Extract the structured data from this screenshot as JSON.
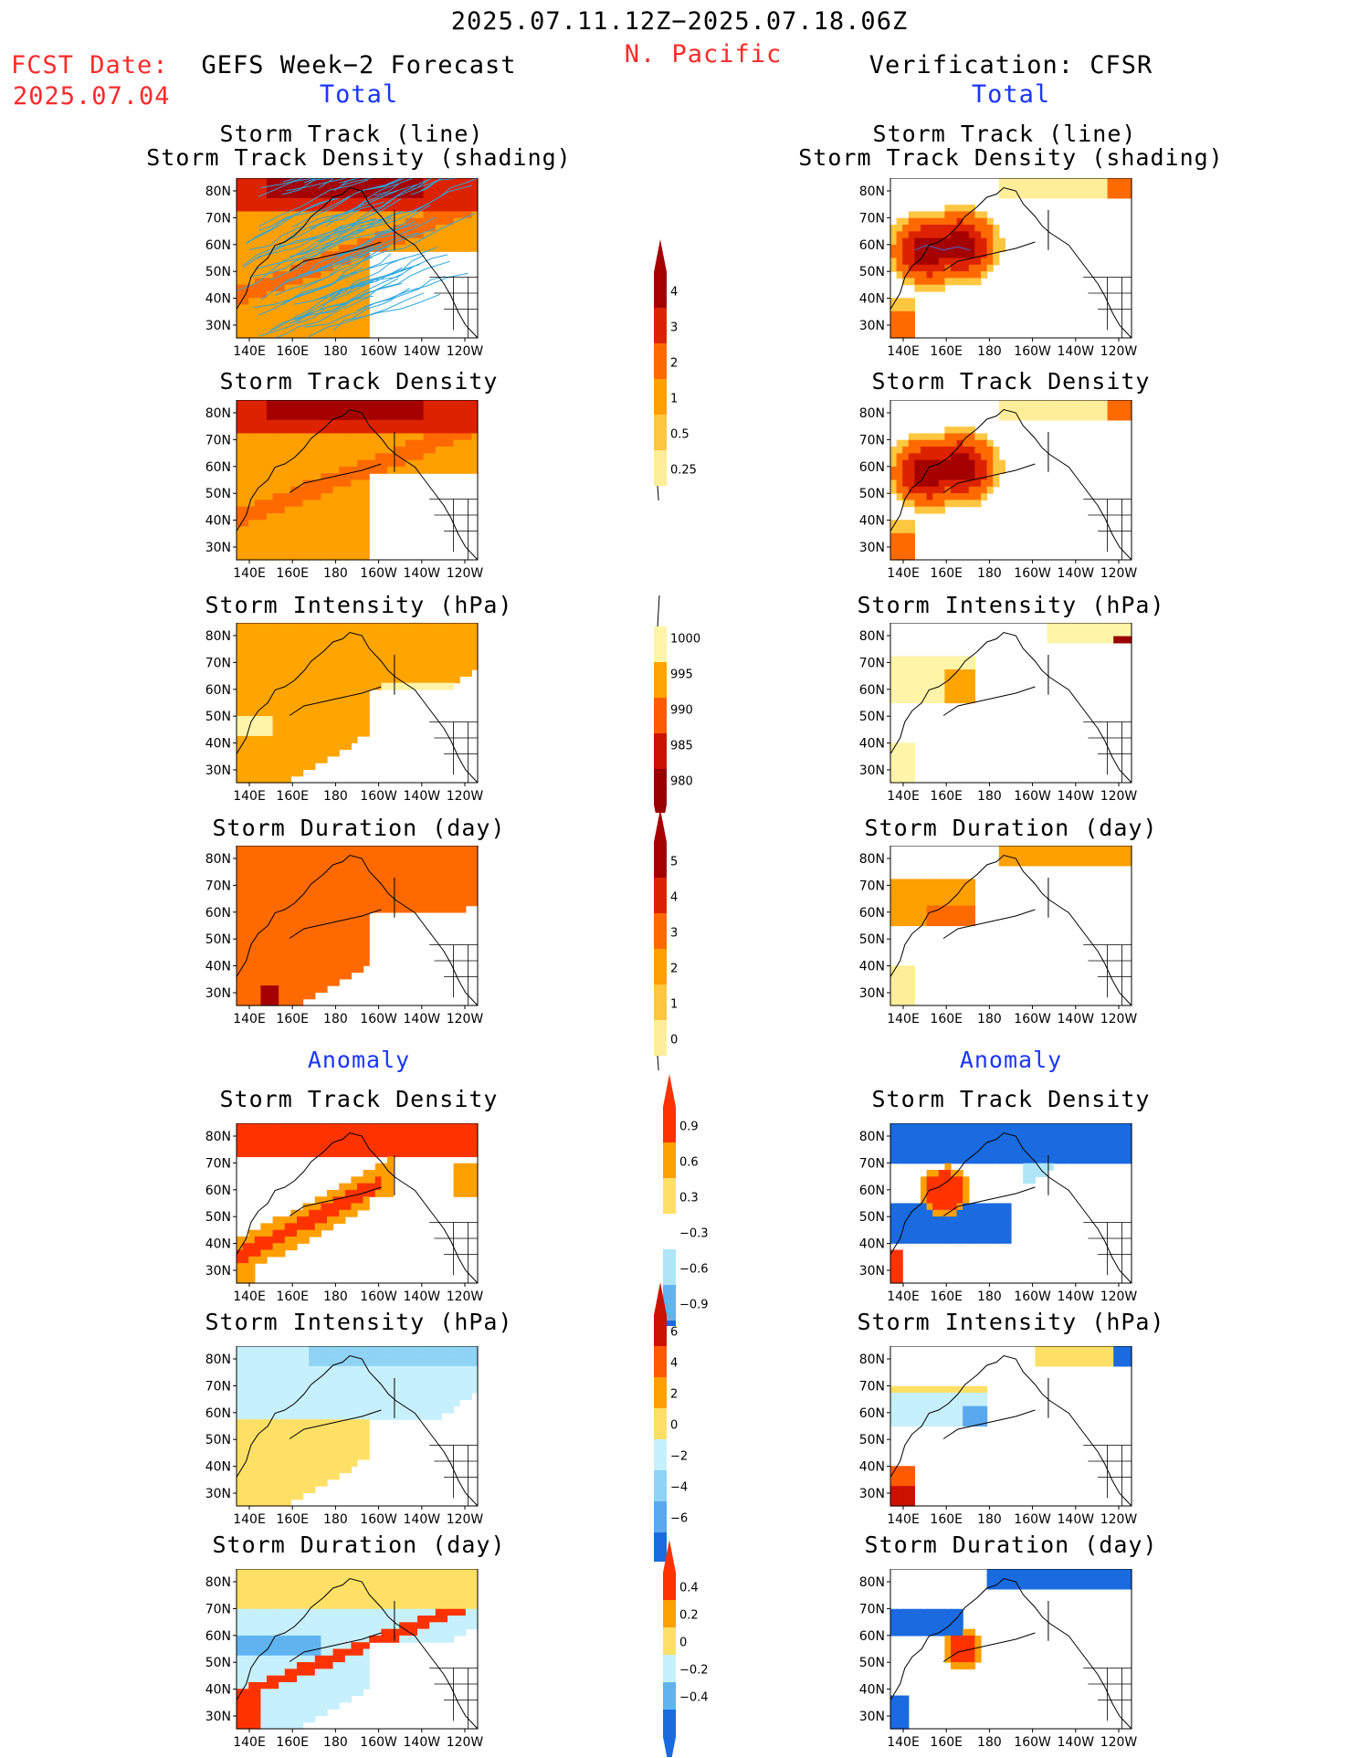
{
  "header": {
    "period": "2025.07.11.12Z−2025.07.18.06Z",
    "region": "N. Pacific",
    "fcst_label": "FCST Date:",
    "fcst_date": "2025.07.04",
    "left_title": "GEFS Week−2 Forecast",
    "right_title": "Verification: CFSR",
    "left_subtitle": "Total",
    "right_subtitle": "Total",
    "anomaly_left": "Anomaly",
    "anomaly_right": "Anomaly"
  },
  "axes": {
    "x_ticks": [
      "140E",
      "160E",
      "180",
      "160W",
      "140W",
      "120W"
    ],
    "y_ticks": [
      "80N",
      "70N",
      "60N",
      "50N",
      "40N",
      "30N"
    ]
  },
  "panels": {
    "p1": {
      "line1": "Storm Track (line)",
      "line2": "Storm Track Density (shading)"
    },
    "p2": {
      "title": "Storm Track Density"
    },
    "p3": {
      "title": "Storm Intensity (hPa)"
    },
    "p4": {
      "title": "Storm Duration (day)"
    },
    "p5": {
      "title": "Storm Track Density"
    },
    "p6": {
      "title": "Storm Intensity (hPa)"
    },
    "p7": {
      "title": "Storm Duration (day)"
    }
  },
  "colorbars": {
    "density": {
      "labels": [
        "4",
        "3",
        "2",
        "1",
        "0.5",
        "0.25"
      ],
      "colors": [
        "#a50000",
        "#dd2200",
        "#ff6a00",
        "#ff9f00",
        "#ffc640",
        "#ffee99"
      ]
    },
    "intensity": {
      "labels": [
        "1000",
        "995",
        "990",
        "985",
        "980"
      ],
      "colors": [
        "#fff4a8",
        "#ffa500",
        "#ff5a00",
        "#cc1100",
        "#990000"
      ]
    },
    "duration": {
      "labels": [
        "5",
        "4",
        "3",
        "2",
        "1",
        "0"
      ],
      "colors": [
        "#a50000",
        "#dd2200",
        "#ff6a00",
        "#ff9f00",
        "#ffc640",
        "#ffee99"
      ]
    },
    "density_anom": {
      "labels": [
        "0.9",
        "0.6",
        "0.3",
        "−0.3",
        "−0.6",
        "−0.9"
      ],
      "colors": [
        "#ff3300",
        "#ff9f00",
        "#ffe066",
        "#ffffff",
        "#aee6f8",
        "#5fb4f0",
        "#1a6ae0"
      ]
    },
    "intensity_anom": {
      "labels": [
        "6",
        "4",
        "2",
        "0",
        "−2",
        "−4",
        "−6"
      ],
      "colors": [
        "#cc1100",
        "#ff5a00",
        "#ff9f00",
        "#ffe066",
        "#c6f0fb",
        "#8fd3f5",
        "#5aa8ee",
        "#1a6ae0"
      ]
    },
    "duration_anom": {
      "labels": [
        "0.4",
        "0.2",
        "0",
        "−0.2",
        "−0.4"
      ],
      "colors": [
        "#ff3300",
        "#ff9f00",
        "#ffe066",
        "#c6f0fb",
        "#5fb4f0",
        "#1a6ae0"
      ]
    }
  },
  "colors": {
    "title_red": "#ff2a2a",
    "title_blue": "#1a36ff"
  }
}
